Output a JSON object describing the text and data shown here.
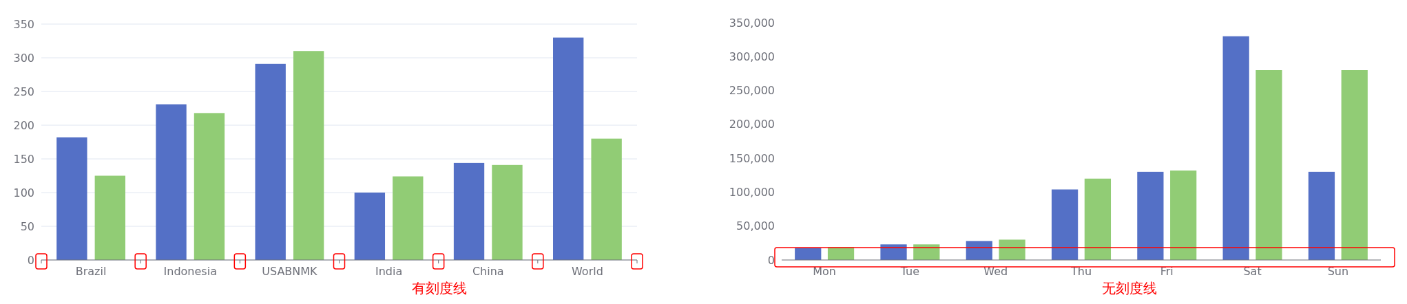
{
  "chart_data": [
    {
      "type": "bar",
      "categories": [
        "Brazil",
        "Indonesia",
        "USABNMK",
        "India",
        "China",
        "World"
      ],
      "series": [
        {
          "color": "#5470c6",
          "values": [
            182,
            231,
            291,
            100,
            144,
            330
          ]
        },
        {
          "color": "#91cc75",
          "values": [
            125,
            218,
            310,
            124,
            141,
            180
          ]
        }
      ],
      "ylim": [
        0,
        350
      ],
      "yticks": [
        0,
        50,
        100,
        150,
        200,
        250,
        300,
        350
      ],
      "grid": "y",
      "annotations": [
        "有刻度线"
      ]
    },
    {
      "type": "bar",
      "categories": [
        "Mon",
        "Tue",
        "Wed",
        "Thu",
        "Fri",
        "Sat",
        "Sun"
      ],
      "series": [
        {
          "color": "#5470c6",
          "values": [
            18000,
            23000,
            28000,
            104000,
            130000,
            330000,
            130000
          ]
        },
        {
          "color": "#91cc75",
          "values": [
            19000,
            23000,
            30000,
            120000,
            132000,
            280000,
            280000
          ]
        }
      ],
      "ylim": [
        0,
        350000
      ],
      "yticks": [
        {
          "value": 0,
          "label": "0"
        },
        {
          "value": 50000,
          "label": "50,000"
        },
        {
          "value": 100000,
          "label": "100,000"
        },
        {
          "value": 150000,
          "label": "150,000"
        },
        {
          "value": 200000,
          "label": "200,000"
        },
        {
          "value": 250000,
          "label": "250,000"
        },
        {
          "value": 300000,
          "label": "300,000"
        },
        {
          "value": 350000,
          "label": "350,000"
        }
      ],
      "grid": false,
      "annotations": [
        "无刻度线"
      ]
    }
  ]
}
